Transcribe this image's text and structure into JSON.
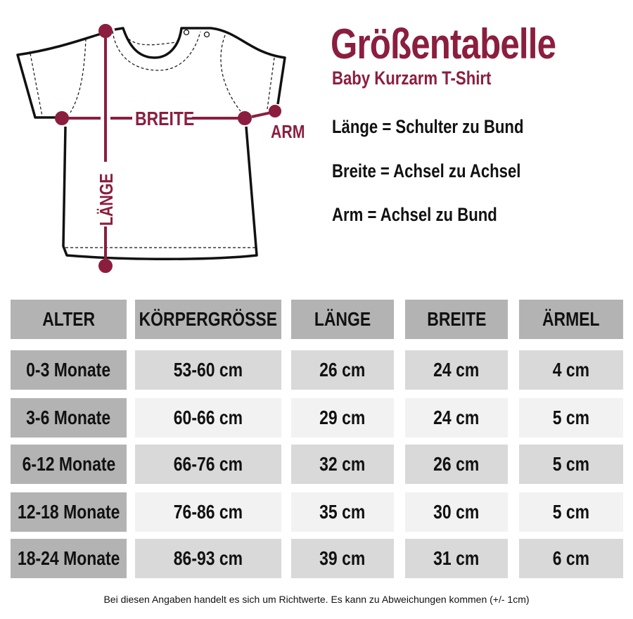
{
  "header": {
    "title": "Größentabelle",
    "subtitle": "Baby Kurzarm T-Shirt"
  },
  "diagram": {
    "accent_color": "#8b1e3f",
    "labels": {
      "breite": "BREITE",
      "laenge": "LÄNGE",
      "arm": "ARM"
    }
  },
  "definitions": [
    "Länge = Schulter zu Bund",
    "Breite = Achsel zu Achsel",
    "Arm = Achsel zu Bund"
  ],
  "table": {
    "headers": [
      "ALTER",
      "KÖRPERGRÖSSE",
      "LÄNGE",
      "BREITE",
      "ÄRMEL"
    ],
    "rows": [
      [
        "0-3 Monate",
        "53-60 cm",
        "26 cm",
        "24 cm",
        "4 cm"
      ],
      [
        "3-6 Monate",
        "60-66 cm",
        "29 cm",
        "24 cm",
        "5 cm"
      ],
      [
        "6-12 Monate",
        "66-76 cm",
        "32 cm",
        "26 cm",
        "5 cm"
      ],
      [
        "12-18 Monate",
        "76-86 cm",
        "35 cm",
        "30 cm",
        "5 cm"
      ],
      [
        "18-24 Monate",
        "86-93 cm",
        "39 cm",
        "31 cm",
        "6 cm"
      ]
    ],
    "colors": {
      "header": "#b3b3b3",
      "row_dark": "#d9d9d9",
      "row_light": "#f2f2f2"
    }
  },
  "footer": "Bei diesen Angaben handelt es sich um Richtwerte. Es kann zu Abweichungen kommen (+/- 1cm)"
}
